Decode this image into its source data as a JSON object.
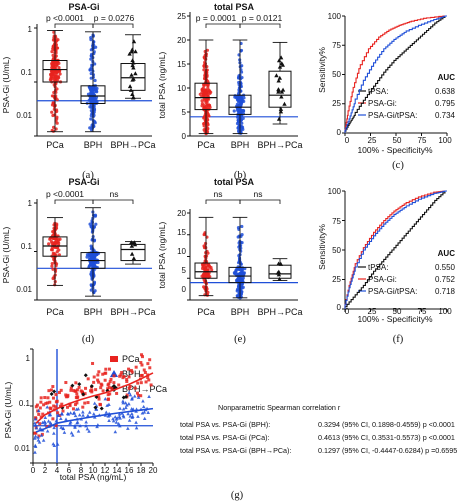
{
  "panels": {
    "a": {
      "label": "(a)",
      "title": "PSA-Gi",
      "ylabel": "PSA-Gi (U/mL)",
      "ytick_labels": [
        "1",
        "0.1",
        "0.01"
      ],
      "categories": [
        "PCa",
        "BPH",
        "BPH→PCa"
      ],
      "pvalues": [
        "p <0.0001",
        "p = 0.0276"
      ]
    },
    "b": {
      "label": "(b)",
      "title": "total PSA",
      "ylabel": "total PSA (ng/mL)",
      "ytick_labels": [
        "25",
        "20",
        "15",
        "10",
        "5",
        "0"
      ],
      "categories": [
        "PCa",
        "BPH",
        "BPH→PCa"
      ],
      "pvalues": [
        "p = 0.0001",
        "p = 0.0121"
      ]
    },
    "c": {
      "label": "(c)",
      "xlabel": "100% - Specificity%",
      "ylabel": "Sensitivity%",
      "tick_labels": [
        "0",
        "25",
        "50",
        "75",
        "100"
      ],
      "auc_header": "AUC",
      "legend": [
        {
          "name": "tPSA:",
          "value": "0.638"
        },
        {
          "name": "PSA-Gi:",
          "value": "0.795"
        },
        {
          "name": "PSA-Gi/tPSA:",
          "value": "0.734"
        }
      ]
    },
    "d": {
      "label": "(d)",
      "title": "PSA-Gi",
      "ylabel": "PSA-Gi (U/mL)",
      "ytick_labels": [
        "1",
        "0.1",
        "0.01"
      ],
      "categories": [
        "PCa",
        "BPH",
        "BPH→PCa"
      ],
      "pvalues": [
        "p <0.0001",
        "ns"
      ]
    },
    "e": {
      "label": "(e)",
      "title": "total PSA",
      "ylabel": "total PSA (ng/mL)",
      "ytick_labels": [
        "20",
        "15",
        "10",
        "5",
        "0"
      ],
      "categories": [
        "PCa",
        "BPH",
        "BPH→PCa"
      ],
      "pvalues": [
        "ns",
        "ns"
      ]
    },
    "f": {
      "label": "(f)",
      "xlabel": "100% - Specificity%",
      "ylabel": "Sensitivity%",
      "tick_labels": [
        "0",
        "25",
        "50",
        "75",
        "100"
      ],
      "auc_header": "AUC",
      "legend": [
        {
          "name": "tPSA:",
          "value": "0.550"
        },
        {
          "name": "PSA-Gi:",
          "value": "0.752"
        },
        {
          "name": "PSA-Gi/tPSA:",
          "value": "0.718"
        }
      ]
    },
    "g": {
      "label": "(g)",
      "xlabel": "total PSA (ng/mL)",
      "ylabel": "PSA-Gi (U/mL)",
      "xtick_labels": [
        "0",
        "2",
        "4",
        "6",
        "8",
        "10",
        "12",
        "14",
        "16",
        "18",
        "20"
      ],
      "ytick_labels": [
        "1",
        "0.1",
        "0.01"
      ],
      "legend": [
        "PCa",
        "BPH",
        "BPH→PCa"
      ],
      "stats_title": "Nonparametric Spearman correlation r",
      "stats": [
        {
          "label": "total PSA vs. PSA-Gi (BPH):",
          "value": "0.3294 (95% CI, 0.1898-0.4559) p <0.0001"
        },
        {
          "label": "total PSA vs. PSA-Gi (PCa):",
          "value": "0.4613 (95% CI, 0.3531-0.5573) p <0.0001"
        },
        {
          "label": "total PSA vs. PSA-Gi (BPH→PCa):",
          "value": "0.1297 (95% CI, -0.4447-0.6284) p =0.6595"
        }
      ]
    }
  },
  "colors": {
    "pca": "#e8231f",
    "bph": "#1f4fd8",
    "bph_pca": "#111111"
  },
  "chart_data": [
    {
      "id": "a",
      "type": "scatter",
      "ylim": [
        0.01,
        1
      ],
      "yscale": "log",
      "categories": [
        "PCa",
        "BPH",
        "BPH→PCa"
      ],
      "medians": [
        0.17,
        0.055,
        0.12
      ],
      "q1": [
        0.1,
        0.04,
        0.07
      ],
      "q3": [
        0.25,
        0.085,
        0.22
      ],
      "whisker_low": [
        0.012,
        0.012,
        0.05
      ],
      "whisker_high": [
        0.9,
        0.85,
        0.75
      ],
      "reference_line": 0.045
    },
    {
      "id": "b",
      "type": "scatter",
      "ylim": [
        0,
        25
      ],
      "categories": [
        "PCa",
        "BPH",
        "BPH→PCa"
      ],
      "medians": [
        8,
        6,
        8.5
      ],
      "q1": [
        5.5,
        4.5,
        6
      ],
      "q3": [
        11,
        8.5,
        13.5
      ],
      "whisker_low": [
        0.5,
        0.5,
        2.5
      ],
      "whisker_high": [
        20,
        20,
        19.5
      ],
      "reference_line": 4
    },
    {
      "id": "c",
      "type": "line",
      "xlim": [
        0,
        100
      ],
      "ylim": [
        0,
        100
      ],
      "series": [
        {
          "name": "tPSA",
          "x": [
            0,
            5,
            10,
            20,
            30,
            40,
            50,
            60,
            70,
            80,
            90,
            100
          ],
          "y": [
            0,
            8,
            15,
            28,
            40,
            52,
            62,
            70,
            78,
            86,
            94,
            100
          ]
        },
        {
          "name": "PSA-Gi",
          "x": [
            0,
            3,
            8,
            15,
            25,
            35,
            45,
            55,
            65,
            80,
            100
          ],
          "y": [
            0,
            15,
            35,
            55,
            72,
            82,
            88,
            92,
            95,
            98,
            100
          ]
        },
        {
          "name": "PSA-Gi/tPSA",
          "x": [
            0,
            5,
            10,
            20,
            30,
            40,
            50,
            60,
            75,
            90,
            100
          ],
          "y": [
            0,
            12,
            25,
            45,
            60,
            72,
            80,
            86,
            92,
            97,
            100
          ]
        }
      ]
    },
    {
      "id": "d",
      "type": "scatter",
      "ylim": [
        0.01,
        1
      ],
      "yscale": "log",
      "categories": [
        "PCa",
        "BPH",
        "BPH→PCa"
      ],
      "medians": [
        0.13,
        0.065,
        0.11
      ],
      "q1": [
        0.08,
        0.045,
        0.065
      ],
      "q3": [
        0.2,
        0.095,
        0.14
      ],
      "whisker_low": [
        0.02,
        0.012,
        0.055
      ],
      "whisker_high": [
        0.5,
        0.8,
        0.16
      ],
      "reference_line": 0.045
    },
    {
      "id": "e",
      "type": "scatter",
      "ylim": [
        0,
        20
      ],
      "categories": [
        "PCa",
        "BPH",
        "BPH→PCa"
      ],
      "medians": [
        6.5,
        5.5,
        6
      ],
      "q1": [
        5,
        4,
        5
      ],
      "q3": [
        8.5,
        7.5,
        8
      ],
      "whisker_low": [
        1,
        0.5,
        4.5
      ],
      "whisker_high": [
        19,
        19,
        9.5
      ],
      "reference_line": 4
    },
    {
      "id": "f",
      "type": "line",
      "xlim": [
        0,
        100
      ],
      "ylim": [
        0,
        100
      ],
      "series": [
        {
          "name": "tPSA",
          "x": [
            0,
            10,
            20,
            30,
            40,
            50,
            60,
            70,
            80,
            90,
            100
          ],
          "y": [
            0,
            10,
            20,
            32,
            42,
            52,
            62,
            72,
            82,
            92,
            100
          ]
        },
        {
          "name": "PSA-Gi",
          "x": [
            0,
            5,
            10,
            20,
            30,
            40,
            50,
            60,
            75,
            90,
            100
          ],
          "y": [
            0,
            20,
            35,
            52,
            65,
            75,
            83,
            89,
            95,
            99,
            100
          ]
        },
        {
          "name": "PSA-Gi/tPSA",
          "x": [
            0,
            5,
            10,
            20,
            30,
            40,
            50,
            60,
            75,
            90,
            100
          ],
          "y": [
            0,
            18,
            32,
            50,
            62,
            72,
            80,
            86,
            93,
            98,
            100
          ]
        }
      ]
    },
    {
      "id": "g",
      "type": "scatter",
      "xlim": [
        0,
        20
      ],
      "ylim": [
        0.01,
        1
      ],
      "yscale": "log",
      "series": [
        {
          "name": "PCa",
          "fit_x": [
            0.5,
            2,
            4,
            6,
            8,
            10,
            12,
            14,
            16,
            18,
            20
          ],
          "fit_y": [
            0.05,
            0.07,
            0.09,
            0.11,
            0.13,
            0.15,
            0.17,
            0.2,
            0.24,
            0.3,
            0.38
          ]
        },
        {
          "name": "BPH",
          "fit_x": [
            0.5,
            2,
            4,
            6,
            8,
            10,
            12,
            14,
            16,
            18,
            20
          ],
          "fit_y": [
            0.035,
            0.04,
            0.05,
            0.055,
            0.06,
            0.065,
            0.07,
            0.075,
            0.08,
            0.085,
            0.09
          ]
        },
        {
          "name": "BPH→PCa"
        }
      ],
      "cutoff_x": 4,
      "cutoff_y": 0.045
    }
  ]
}
